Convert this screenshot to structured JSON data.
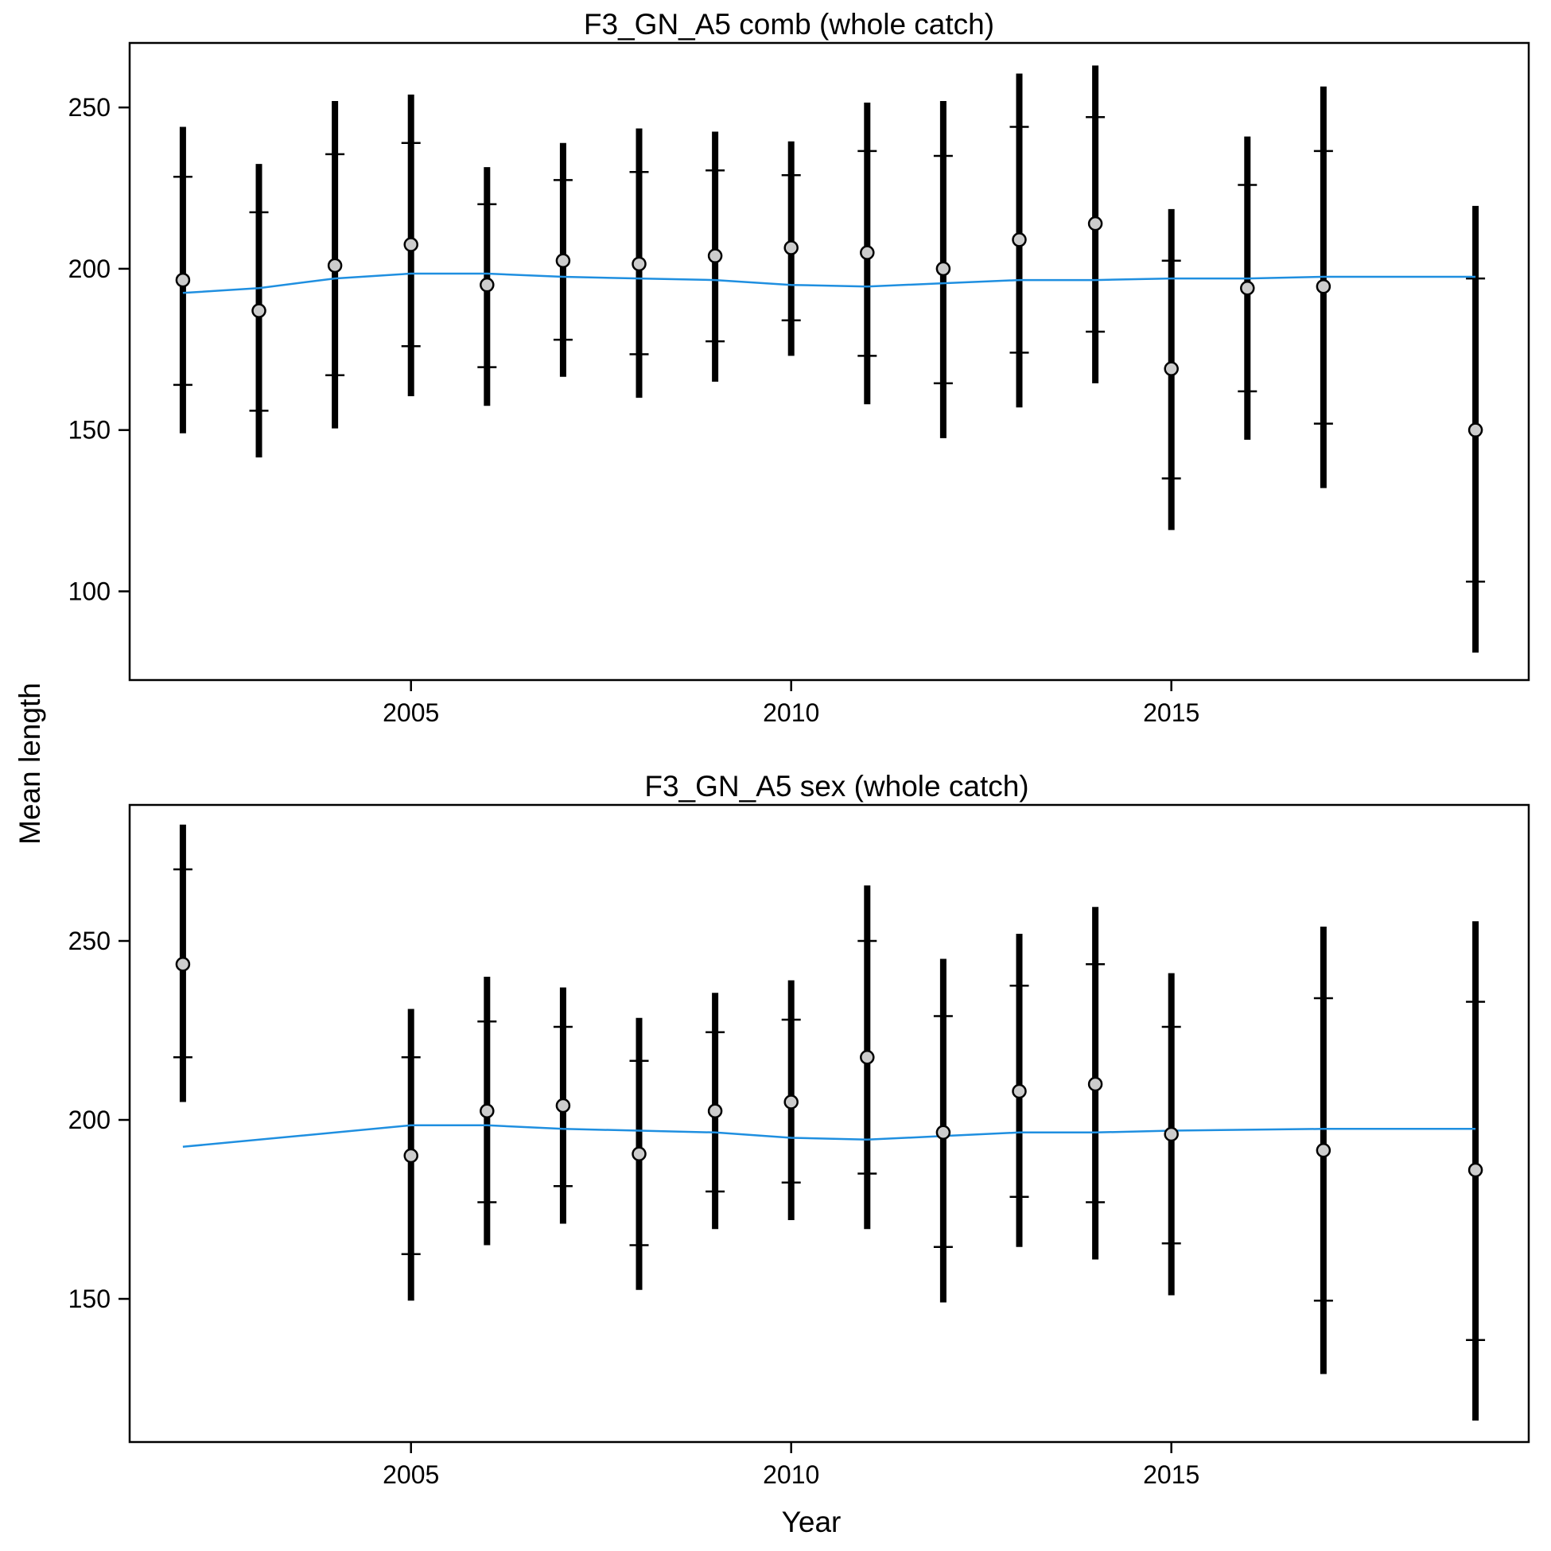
{
  "colors": {
    "fit": "#1f8fe0",
    "point_fill": "#cccccc",
    "ink": "#000000"
  },
  "chart_data": [
    {
      "type": "scatter",
      "title": "F3_GN_A5 comb (whole catch)",
      "xlabel": "Year",
      "ylabel": "Mean length",
      "xlim": [
        2001.3,
        2019.7
      ],
      "ylim": [
        72.5,
        270
      ],
      "xticks": [
        2005,
        2010,
        2015
      ],
      "yticks": [
        100,
        150,
        200,
        250
      ],
      "grid": false,
      "legend": "none",
      "points": [
        {
          "x": 2002,
          "mean": 196.5,
          "inner": [
            164,
            228.5
          ],
          "outer": [
            149,
            244
          ]
        },
        {
          "x": 2003,
          "mean": 187,
          "inner": [
            156,
            217.5
          ],
          "outer": [
            141.5,
            232.5
          ]
        },
        {
          "x": 2004,
          "mean": 201,
          "inner": [
            167,
            235.5
          ],
          "outer": [
            150.5,
            252
          ]
        },
        {
          "x": 2005,
          "mean": 207.5,
          "inner": [
            176,
            239
          ],
          "outer": [
            160.5,
            254
          ]
        },
        {
          "x": 2006,
          "mean": 195,
          "inner": [
            169.5,
            220
          ],
          "outer": [
            157.5,
            231.5
          ]
        },
        {
          "x": 2007,
          "mean": 202.5,
          "inner": [
            178,
            227.5
          ],
          "outer": [
            166.5,
            239
          ]
        },
        {
          "x": 2008,
          "mean": 201.5,
          "inner": [
            173.5,
            230
          ],
          "outer": [
            160,
            243.5
          ]
        },
        {
          "x": 2009,
          "mean": 204,
          "inner": [
            177.5,
            230.5
          ],
          "outer": [
            165,
            242.5
          ]
        },
        {
          "x": 2010,
          "mean": 206.5,
          "inner": [
            184,
            229
          ],
          "outer": [
            173,
            239.5
          ]
        },
        {
          "x": 2011,
          "mean": 205,
          "inner": [
            173,
            236.5
          ],
          "outer": [
            158,
            251.5
          ]
        },
        {
          "x": 2012,
          "mean": 200,
          "inner": [
            164.5,
            235
          ],
          "outer": [
            147.5,
            252
          ]
        },
        {
          "x": 2013,
          "mean": 209,
          "inner": [
            174,
            244
          ],
          "outer": [
            157,
            260.5
          ]
        },
        {
          "x": 2014,
          "mean": 214,
          "inner": [
            180.5,
            247
          ],
          "outer": [
            164.5,
            263
          ]
        },
        {
          "x": 2015,
          "mean": 169,
          "inner": [
            135,
            202.5
          ],
          "outer": [
            119,
            218.5
          ]
        },
        {
          "x": 2016,
          "mean": 194,
          "inner": [
            162,
            226
          ],
          "outer": [
            147,
            241
          ]
        },
        {
          "x": 2017,
          "mean": 194.5,
          "inner": [
            152,
            236.5
          ],
          "outer": [
            132,
            256.5
          ]
        },
        {
          "x": 2019,
          "mean": 150,
          "inner": [
            103,
            197
          ],
          "outer": [
            81,
            219.5
          ]
        }
      ],
      "fit": {
        "x": [
          2002,
          2003,
          2004,
          2005,
          2006,
          2007,
          2008,
          2009,
          2010,
          2011,
          2012,
          2013,
          2014,
          2015,
          2016,
          2017,
          2019
        ],
        "y": [
          192.5,
          194,
          197,
          198.5,
          198.5,
          197.5,
          197,
          196.5,
          195,
          194.5,
          195.5,
          196.5,
          196.5,
          197,
          197,
          197.5,
          197.5
        ]
      }
    },
    {
      "type": "scatter",
      "title": "F3_GN_A5 sex (whole catch)",
      "xlabel": "Year",
      "ylabel": "Mean length",
      "xlim": [
        2001.3,
        2019.7
      ],
      "ylim": [
        110,
        288
      ],
      "xticks": [
        2005,
        2010,
        2015
      ],
      "yticks": [
        150,
        200,
        250
      ],
      "grid": false,
      "legend": "none",
      "points": [
        {
          "x": 2002,
          "mean": 243.5,
          "inner": [
            217.5,
            270
          ],
          "outer": [
            205,
            282.5
          ]
        },
        {
          "x": 2005,
          "mean": 190,
          "inner": [
            162.5,
            217.5
          ],
          "outer": [
            149.5,
            231
          ]
        },
        {
          "x": 2006,
          "mean": 202.5,
          "inner": [
            177,
            227.5
          ],
          "outer": [
            165,
            240
          ]
        },
        {
          "x": 2007,
          "mean": 204,
          "inner": [
            181.5,
            226
          ],
          "outer": [
            171,
            237
          ]
        },
        {
          "x": 2008,
          "mean": 190.5,
          "inner": [
            165,
            216.5
          ],
          "outer": [
            152.5,
            228.5
          ]
        },
        {
          "x": 2009,
          "mean": 202.5,
          "inner": [
            180,
            224.5
          ],
          "outer": [
            169.5,
            235.5
          ]
        },
        {
          "x": 2010,
          "mean": 205,
          "inner": [
            182.5,
            228
          ],
          "outer": [
            172,
            239
          ]
        },
        {
          "x": 2011,
          "mean": 217.5,
          "inner": [
            185,
            250
          ],
          "outer": [
            169.5,
            265.5
          ]
        },
        {
          "x": 2012,
          "mean": 196.5,
          "inner": [
            164.5,
            229
          ],
          "outer": [
            149,
            245
          ]
        },
        {
          "x": 2013,
          "mean": 208,
          "inner": [
            178.5,
            237.5
          ],
          "outer": [
            164.5,
            252
          ]
        },
        {
          "x": 2014,
          "mean": 210,
          "inner": [
            177,
            243.5
          ],
          "outer": [
            161,
            259.5
          ]
        },
        {
          "x": 2015,
          "mean": 196,
          "inner": [
            165.5,
            226
          ],
          "outer": [
            151,
            241
          ]
        },
        {
          "x": 2017,
          "mean": 191.5,
          "inner": [
            149.5,
            234
          ],
          "outer": [
            129,
            254
          ]
        },
        {
          "x": 2019,
          "mean": 186,
          "inner": [
            138.5,
            233
          ],
          "outer": [
            116,
            255.5
          ]
        }
      ],
      "fit": {
        "x": [
          2002,
          2005,
          2006,
          2007,
          2008,
          2009,
          2010,
          2011,
          2012,
          2013,
          2014,
          2015,
          2017,
          2019
        ],
        "y": [
          192.5,
          198.5,
          198.5,
          197.5,
          197,
          196.5,
          195,
          194.5,
          195.5,
          196.5,
          196.5,
          197,
          197.5,
          197.5
        ]
      }
    }
  ]
}
